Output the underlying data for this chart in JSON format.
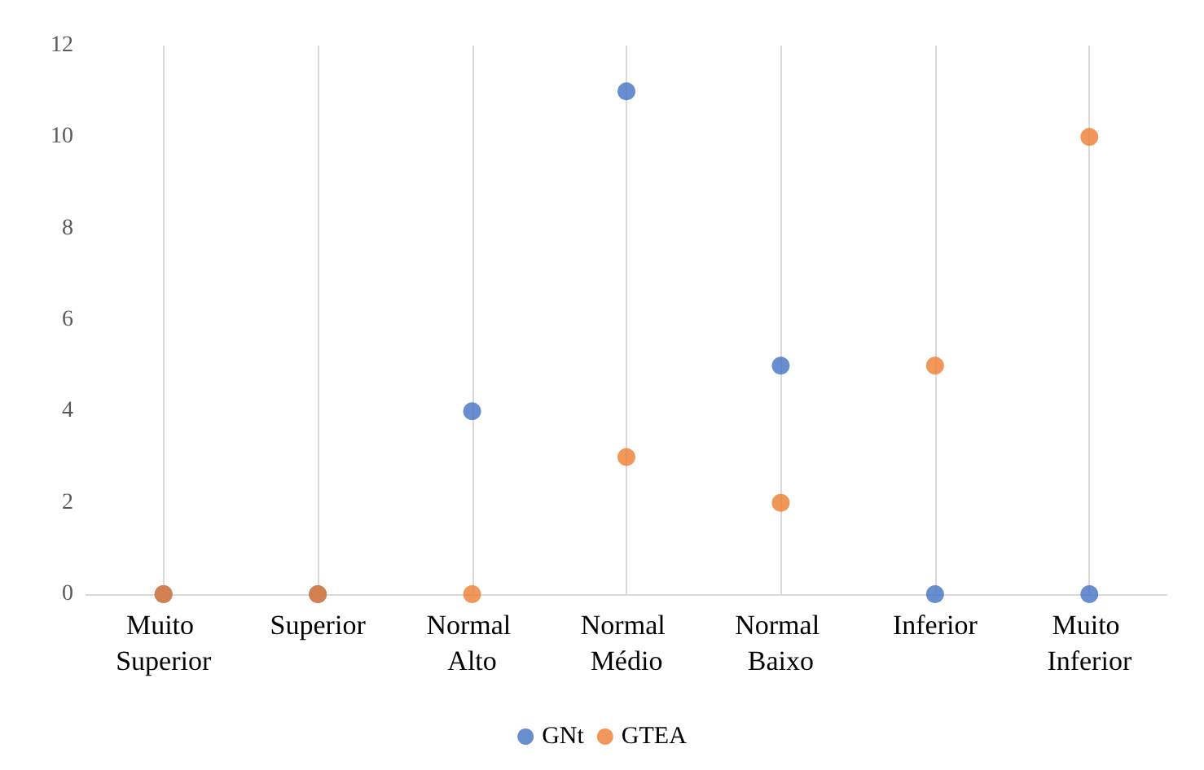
{
  "chart_data": {
    "type": "scatter",
    "categories": [
      "Muito Superior",
      "Superior",
      "Normal Alto",
      "Normal Médio",
      "Normal Baixo",
      "Inferior",
      "Muito Inferior"
    ],
    "series": [
      {
        "name": "GNt",
        "color": "#4472c4",
        "values": [
          0,
          0,
          4,
          11,
          5,
          0,
          0
        ]
      },
      {
        "name": "GTEA",
        "color": "#ed7d31",
        "values": [
          0,
          0,
          0,
          3,
          2,
          5,
          10
        ]
      }
    ],
    "ylim": [
      0,
      12
    ],
    "yticks": [
      0,
      2,
      4,
      6,
      8,
      10,
      12
    ],
    "grid": "x",
    "legend": "bottom",
    "marker": "circle"
  }
}
